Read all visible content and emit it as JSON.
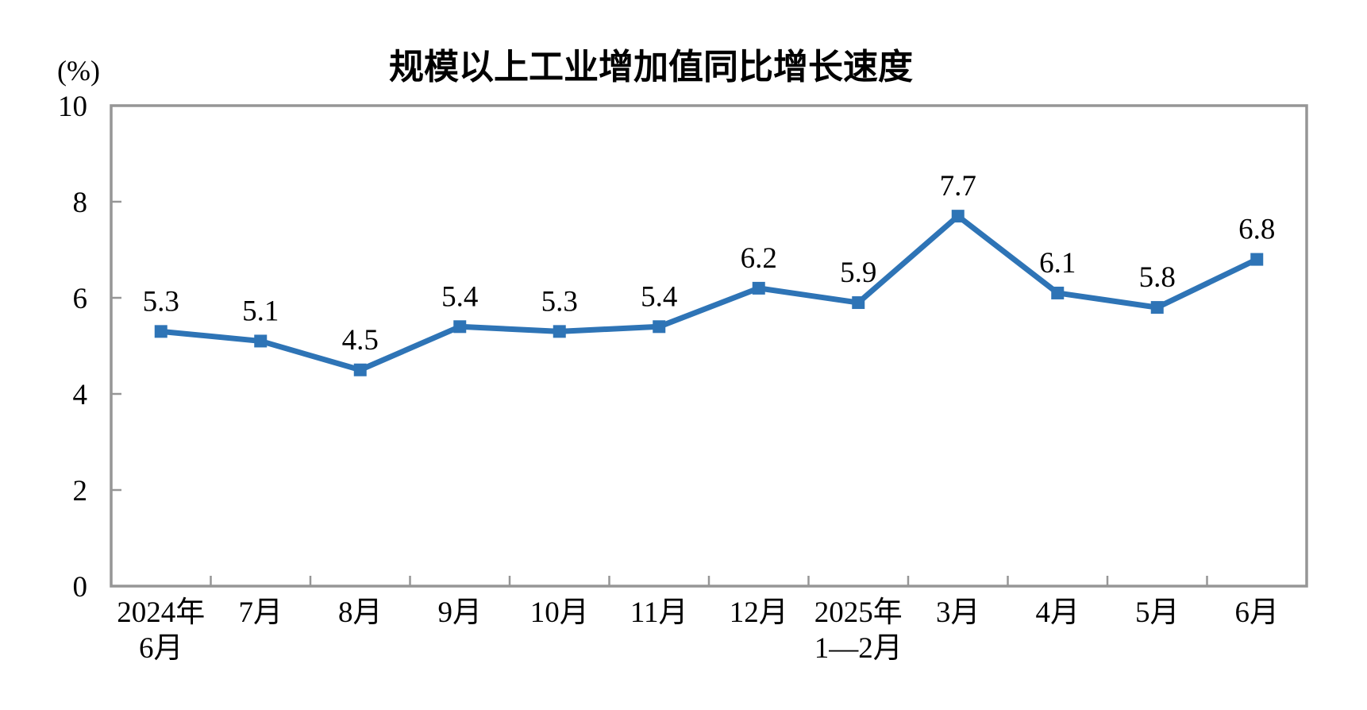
{
  "chart_data": {
    "type": "line",
    "title": "规模以上工业增加值同比增长速度",
    "ylabel": "(%)",
    "xlabel": "",
    "categories": [
      [
        "2024年",
        "6月"
      ],
      [
        "7月"
      ],
      [
        "8月"
      ],
      [
        "9月"
      ],
      [
        "10月"
      ],
      [
        "11月"
      ],
      [
        "12月"
      ],
      [
        "2025年",
        "1—2月"
      ],
      [
        "3月"
      ],
      [
        "4月"
      ],
      [
        "5月"
      ],
      [
        "6月"
      ]
    ],
    "series": [
      {
        "name": "规模以上工业增加值同比增长速度",
        "values": [
          5.3,
          5.1,
          4.5,
          5.4,
          5.3,
          5.4,
          6.2,
          5.9,
          7.7,
          6.1,
          5.8,
          6.8
        ],
        "data_labels": [
          "5.3",
          "5.1",
          "4.5",
          "5.4",
          "5.3",
          "5.4",
          "6.2",
          "5.9",
          "7.7",
          "6.1",
          "5.8",
          "6.8"
        ]
      }
    ],
    "ylim": [
      0,
      10
    ],
    "yticks": [
      0,
      2,
      4,
      6,
      8,
      10
    ],
    "grid": false,
    "legend": "none",
    "marker": "square",
    "colors": {
      "line": "#2E74B6",
      "axis": "#969696",
      "text": "#000000"
    }
  }
}
